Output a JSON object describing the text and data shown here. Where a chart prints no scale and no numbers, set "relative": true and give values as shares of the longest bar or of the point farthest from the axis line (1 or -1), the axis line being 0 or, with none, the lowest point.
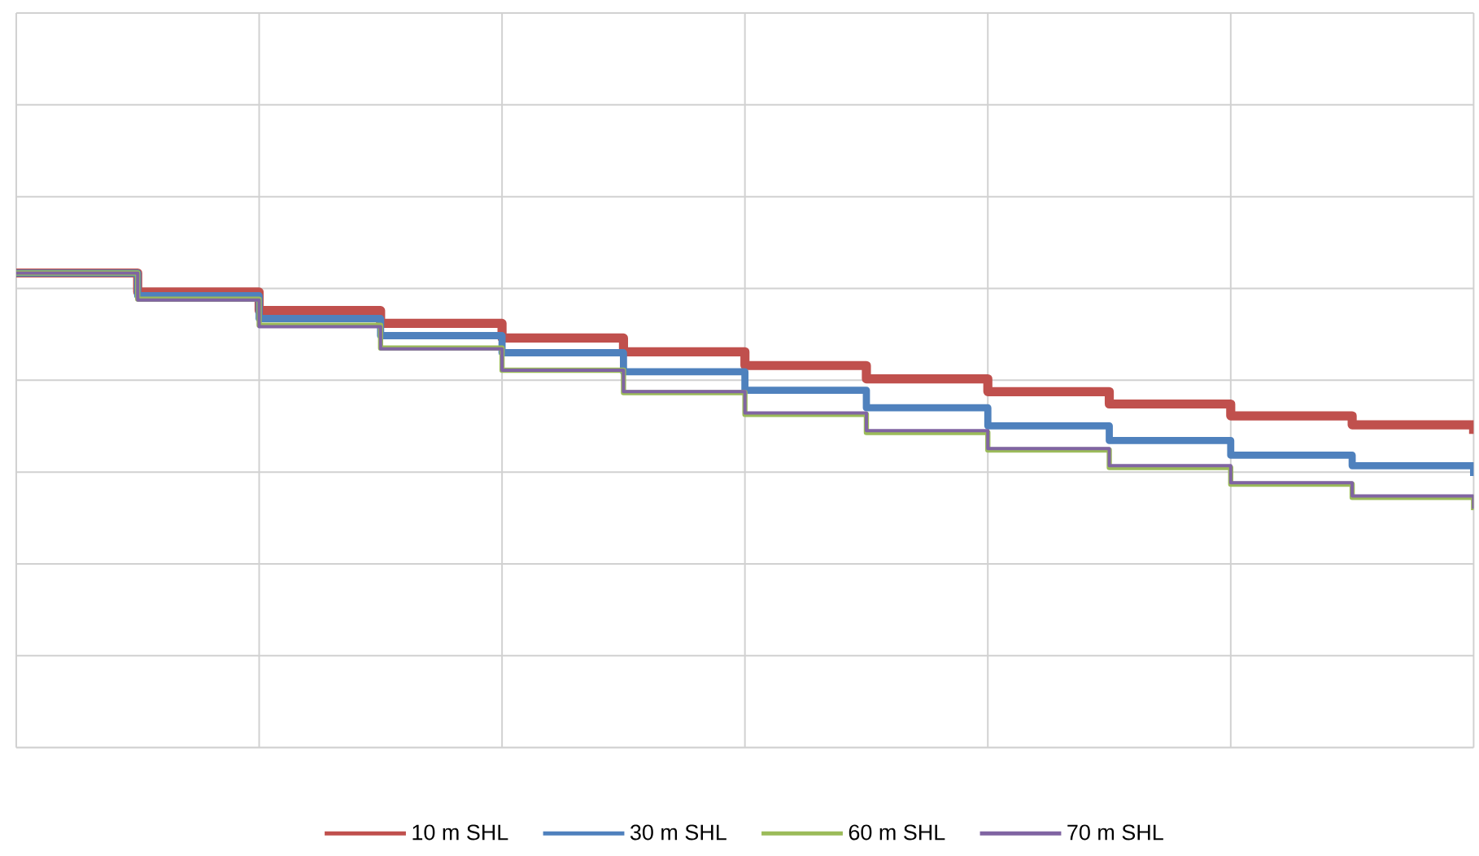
{
  "chart_data": {
    "type": "step",
    "relative": true,
    "grid": true,
    "legend": "bottom",
    "marker": "none",
    "line_style": "solid",
    "categories": [
      null,
      null,
      null,
      null,
      null,
      null,
      null,
      null,
      null,
      null,
      null,
      null,
      null
    ],
    "series": [
      {
        "name": "10 m SHL",
        "color": "#c0504d",
        "values": [
          1,
          0.96,
          0.921,
          0.894,
          0.863,
          0.834,
          0.805,
          0.777,
          0.75,
          0.724,
          0.699,
          0.68,
          0.661
        ]
      },
      {
        "name": "30 m SHL",
        "color": "#4f81bd",
        "values": [
          1,
          0.952,
          0.904,
          0.868,
          0.832,
          0.792,
          0.753,
          0.716,
          0.678,
          0.647,
          0.616,
          0.594,
          0.572
        ]
      },
      {
        "name": "60 m SHL",
        "color": "#9bbb59",
        "values": [
          1,
          0.945,
          0.89,
          0.842,
          0.795,
          0.748,
          0.702,
          0.664,
          0.627,
          0.59,
          0.555,
          0.527,
          0.5
        ]
      },
      {
        "name": "70 m SHL",
        "color": "#8064a2",
        "values": [
          1,
          0.943,
          0.887,
          0.84,
          0.795,
          0.75,
          0.705,
          0.668,
          0.63,
          0.594,
          0.558,
          0.53,
          0.503
        ]
      }
    ]
  }
}
